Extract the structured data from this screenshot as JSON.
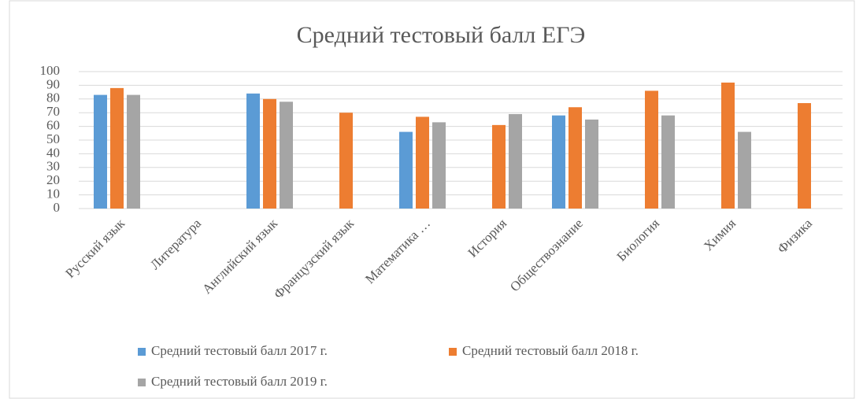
{
  "chart_data": {
    "type": "bar",
    "title": "Средний тестовый балл  ЕГЭ",
    "categories": [
      "Русский язык",
      "Литература",
      "Английский язык",
      "Французский язык",
      "Математика …",
      "История",
      "Обществознание",
      "Биология",
      "Химия",
      "Физика"
    ],
    "series": [
      {
        "name": "Средний тестовый балл 2017  г.",
        "color": "#5b9bd5",
        "values": [
          83,
          null,
          84,
          null,
          56,
          null,
          68,
          null,
          null,
          null
        ]
      },
      {
        "name": "Средний тестовый балл 2018  г.",
        "color": "#ed7d31",
        "values": [
          88,
          null,
          80,
          70,
          67,
          61,
          74,
          86,
          92,
          77
        ]
      },
      {
        "name": "Средний тестовый балл 2019  г.",
        "color": "#a5a5a5",
        "values": [
          83,
          null,
          78,
          null,
          63,
          69,
          65,
          68,
          56,
          null
        ]
      }
    ],
    "ylim": [
      0,
      100
    ],
    "yticks": [
      0,
      10,
      20,
      30,
      40,
      50,
      60,
      70,
      80,
      90,
      100
    ],
    "grid": true,
    "legend": "bottom"
  }
}
